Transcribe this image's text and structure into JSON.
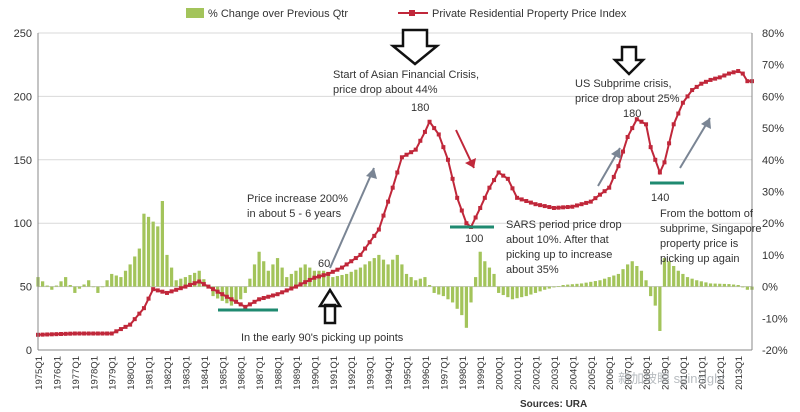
{
  "chart_data": {
    "type": "bar+line",
    "legend": {
      "placement": "top",
      "entries": [
        "% Change over Previous Qtr",
        "Private Residential Property Price Index"
      ]
    },
    "source": "Sources: URA",
    "watermark": "新加坡眼 sginsight",
    "left_axis": {
      "range": [
        0,
        250
      ],
      "ticks": [
        "0",
        "50",
        "100",
        "150",
        "200",
        "250"
      ]
    },
    "right_axis": {
      "range": [
        -20,
        80
      ],
      "ticks": [
        "-20%",
        "-10%",
        "0%",
        "10%",
        "20%",
        "30%",
        "40%",
        "50%",
        "60%",
        "70%",
        "80%"
      ]
    },
    "x_ticks": [
      "1975Q1",
      "1976Q1",
      "1977Q1",
      "1978Q1",
      "1979Q1",
      "1980Q1",
      "1981Q1",
      "1982Q1",
      "1983Q1",
      "1984Q1",
      "1985Q1",
      "1986Q1",
      "1987Q1",
      "1988Q1",
      "1989Q1",
      "1990Q1",
      "1991Q1",
      "1992Q1",
      "1993Q1",
      "1994Q1",
      "1995Q1",
      "1996Q1",
      "1997Q1",
      "1998Q1",
      "1999Q1",
      "2000Q1",
      "2001Q1",
      "2002Q1",
      "2003Q1",
      "2004Q1",
      "2005Q1",
      "2006Q1",
      "2007Q1",
      "2008Q1",
      "2009Q1",
      "2010Q1",
      "2011Q1",
      "2012Q1",
      "2013Q1"
    ],
    "series": [
      {
        "name": "Private Residential Property Price Index",
        "kind": "line",
        "axis": "left",
        "color": "#c0273a",
        "keypoints": [
          [
            1975.0,
            12
          ],
          [
            1977.0,
            13
          ],
          [
            1979.0,
            13
          ],
          [
            1980.0,
            20
          ],
          [
            1980.75,
            33
          ],
          [
            1981.25,
            48
          ],
          [
            1982.0,
            45
          ],
          [
            1983.0,
            50
          ],
          [
            1983.75,
            54
          ],
          [
            1984.5,
            48
          ],
          [
            1985.5,
            40
          ],
          [
            1986.25,
            34
          ],
          [
            1987.0,
            40
          ],
          [
            1988.0,
            44
          ],
          [
            1989.0,
            50
          ],
          [
            1990.0,
            57
          ],
          [
            1990.75,
            60
          ],
          [
            1991.5,
            65
          ],
          [
            1992.5,
            75
          ],
          [
            1993.5,
            95
          ],
          [
            1994.25,
            128
          ],
          [
            1994.75,
            152
          ],
          [
            1995.5,
            158
          ],
          [
            1996.0,
            172
          ],
          [
            1996.25,
            180
          ],
          [
            1996.75,
            170
          ],
          [
            1997.25,
            150
          ],
          [
            1997.75,
            120
          ],
          [
            1998.25,
            100
          ],
          [
            1998.5,
            97
          ],
          [
            1999.0,
            112
          ],
          [
            1999.5,
            128
          ],
          [
            2000.0,
            140
          ],
          [
            2000.5,
            135
          ],
          [
            2001.0,
            120
          ],
          [
            2002.0,
            115
          ],
          [
            2003.0,
            112
          ],
          [
            2004.0,
            113
          ],
          [
            2005.0,
            117
          ],
          [
            2006.0,
            128
          ],
          [
            2006.5,
            145
          ],
          [
            2007.0,
            168
          ],
          [
            2007.5,
            182
          ],
          [
            2008.0,
            178
          ],
          [
            2008.25,
            160
          ],
          [
            2008.75,
            140
          ],
          [
            2009.0,
            148
          ],
          [
            2009.5,
            178
          ],
          [
            2010.0,
            195
          ],
          [
            2010.5,
            205
          ],
          [
            2011.0,
            210
          ],
          [
            2011.5,
            213
          ],
          [
            2012.0,
            215
          ],
          [
            2012.5,
            218
          ],
          [
            2013.0,
            220
          ],
          [
            2013.25,
            218
          ],
          [
            2013.5,
            212
          ]
        ]
      },
      {
        "name": "% Change over Previous Qtr",
        "kind": "bar",
        "axis": "right",
        "unit": "%",
        "color": "#a3c45b",
        "keypoints": [
          [
            1975.0,
            3
          ],
          [
            1975.75,
            -1
          ],
          [
            1976.5,
            3
          ],
          [
            1977.0,
            -2
          ],
          [
            1977.75,
            2
          ],
          [
            1978.25,
            -2
          ],
          [
            1979.0,
            4
          ],
          [
            1979.5,
            3
          ],
          [
            1980.0,
            7
          ],
          [
            1980.5,
            12
          ],
          [
            1980.75,
            23
          ],
          [
            1981.0,
            22
          ],
          [
            1981.5,
            19
          ],
          [
            1981.75,
            27
          ],
          [
            1982.0,
            10
          ],
          [
            1982.5,
            2
          ],
          [
            1983.0,
            3
          ],
          [
            1983.75,
            5
          ],
          [
            1984.5,
            -3
          ],
          [
            1985.5,
            -6
          ],
          [
            1986.0,
            -4
          ],
          [
            1986.25,
            -2
          ],
          [
            1986.75,
            7
          ],
          [
            1987.0,
            11
          ],
          [
            1987.5,
            5
          ],
          [
            1988.0,
            9
          ],
          [
            1988.5,
            3
          ],
          [
            1989.0,
            5
          ],
          [
            1989.5,
            7
          ],
          [
            1990.0,
            5
          ],
          [
            1990.5,
            5
          ],
          [
            1991.0,
            3
          ],
          [
            1991.75,
            4
          ],
          [
            1992.5,
            6
          ],
          [
            1993.5,
            10
          ],
          [
            1994.0,
            7
          ],
          [
            1994.5,
            10
          ],
          [
            1995.0,
            4
          ],
          [
            1995.5,
            2
          ],
          [
            1996.0,
            3
          ],
          [
            1996.5,
            -2
          ],
          [
            1997.0,
            -3
          ],
          [
            1997.5,
            -5
          ],
          [
            1998.0,
            -9
          ],
          [
            1998.25,
            -13
          ],
          [
            1998.75,
            3
          ],
          [
            1999.0,
            11
          ],
          [
            1999.25,
            8
          ],
          [
            1999.75,
            4
          ],
          [
            2000.0,
            -2
          ],
          [
            2000.75,
            -4
          ],
          [
            2001.5,
            -3
          ],
          [
            2002.5,
            -1
          ],
          [
            2003.5,
            0.5
          ],
          [
            2004.5,
            1
          ],
          [
            2005.5,
            2
          ],
          [
            2006.5,
            4
          ],
          [
            2007.0,
            7
          ],
          [
            2007.25,
            8
          ],
          [
            2007.75,
            5
          ],
          [
            2008.0,
            2
          ],
          [
            2008.25,
            -3
          ],
          [
            2008.5,
            -6
          ],
          [
            2008.75,
            -14
          ],
          [
            2009.0,
            9
          ],
          [
            2009.25,
            8
          ],
          [
            2009.75,
            5
          ],
          [
            2010.25,
            3
          ],
          [
            2010.75,
            2
          ],
          [
            2011.5,
            1
          ],
          [
            2012.5,
            0.8
          ],
          [
            2013.0,
            0.5
          ],
          [
            2013.5,
            -1
          ]
        ]
      }
    ],
    "annotations": [
      {
        "text": "Start of Asian Financial Crisis,",
        "line2": "price drop about 44%"
      },
      {
        "text": "US Subprime crisis,",
        "line2": "price drop about 25%"
      },
      {
        "text": "Price increase 200%",
        "line2": "in about 5 - 6 years"
      },
      {
        "text": "SARS period price drop",
        "line2": "about 10%. After that",
        "line3": "picking up to increase",
        "line4": "about 35%"
      },
      {
        "text": "From the bottom of",
        "line2": "subprime, Singapore",
        "line3": "property price is",
        "line4": "picking up again"
      },
      {
        "text": "In the early 90's picking up points"
      }
    ],
    "point_labels": [
      "180",
      "180",
      "140",
      "100",
      "60"
    ]
  }
}
